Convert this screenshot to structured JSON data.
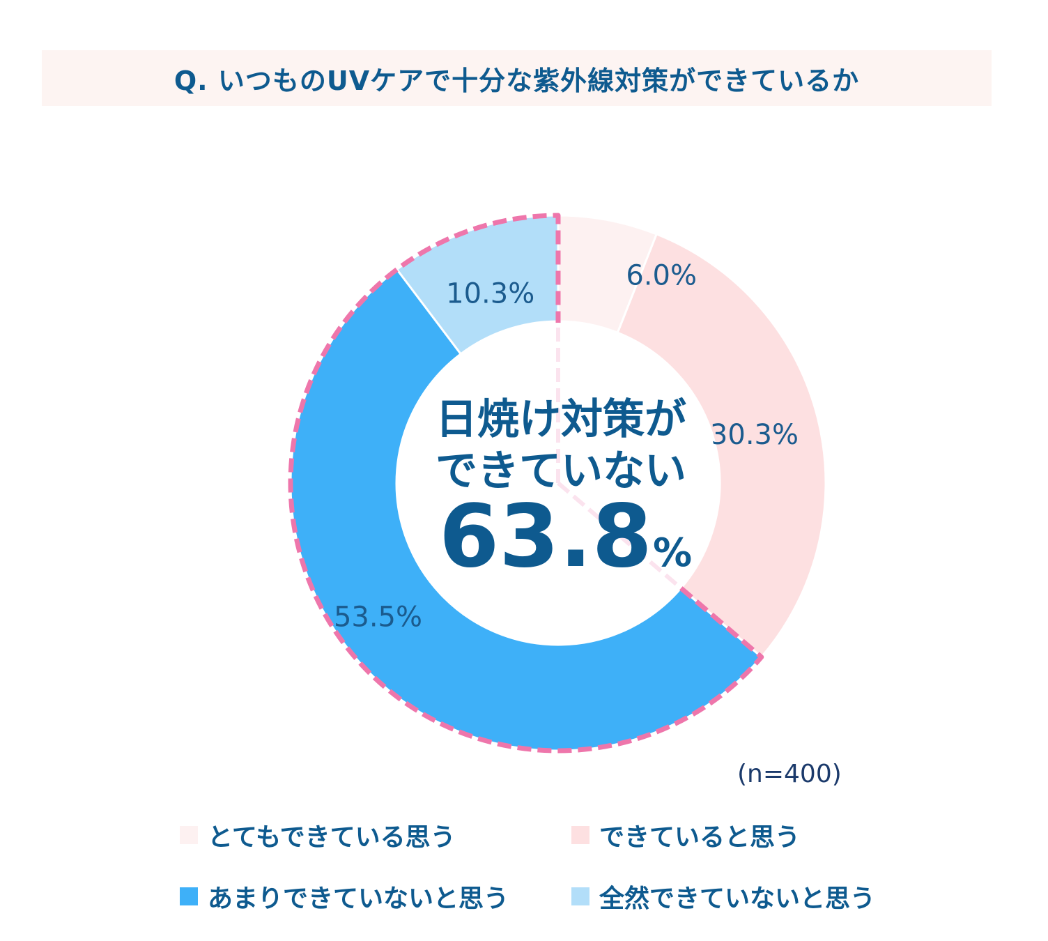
{
  "chart_data": {
    "type": "pie",
    "title": "Q. いつものUVケアで十分な紫外線対策ができているか",
    "categories": [
      "とてもできている思う",
      "できていると思う",
      "あまりできていないと思う",
      "全然できていないと思う"
    ],
    "values": [
      6.0,
      30.3,
      53.5,
      10.3
    ],
    "value_labels": [
      "6.0%",
      "30.3%",
      "53.5%",
      "10.3%"
    ],
    "colors": [
      "#fdf1f1",
      "#fde0e1",
      "#3eb0f8",
      "#b2def9"
    ],
    "donut": true,
    "highlight": {
      "slices": [
        "あまりできていないと思う",
        "全然できていないと思う"
      ],
      "text_lines": [
        "日焼け対策が",
        "できていない"
      ],
      "value": "63.8",
      "unit": "%",
      "outline_color": "#ee76ab"
    },
    "legend_placement": "bottom",
    "sample_size": "(n=400)"
  }
}
